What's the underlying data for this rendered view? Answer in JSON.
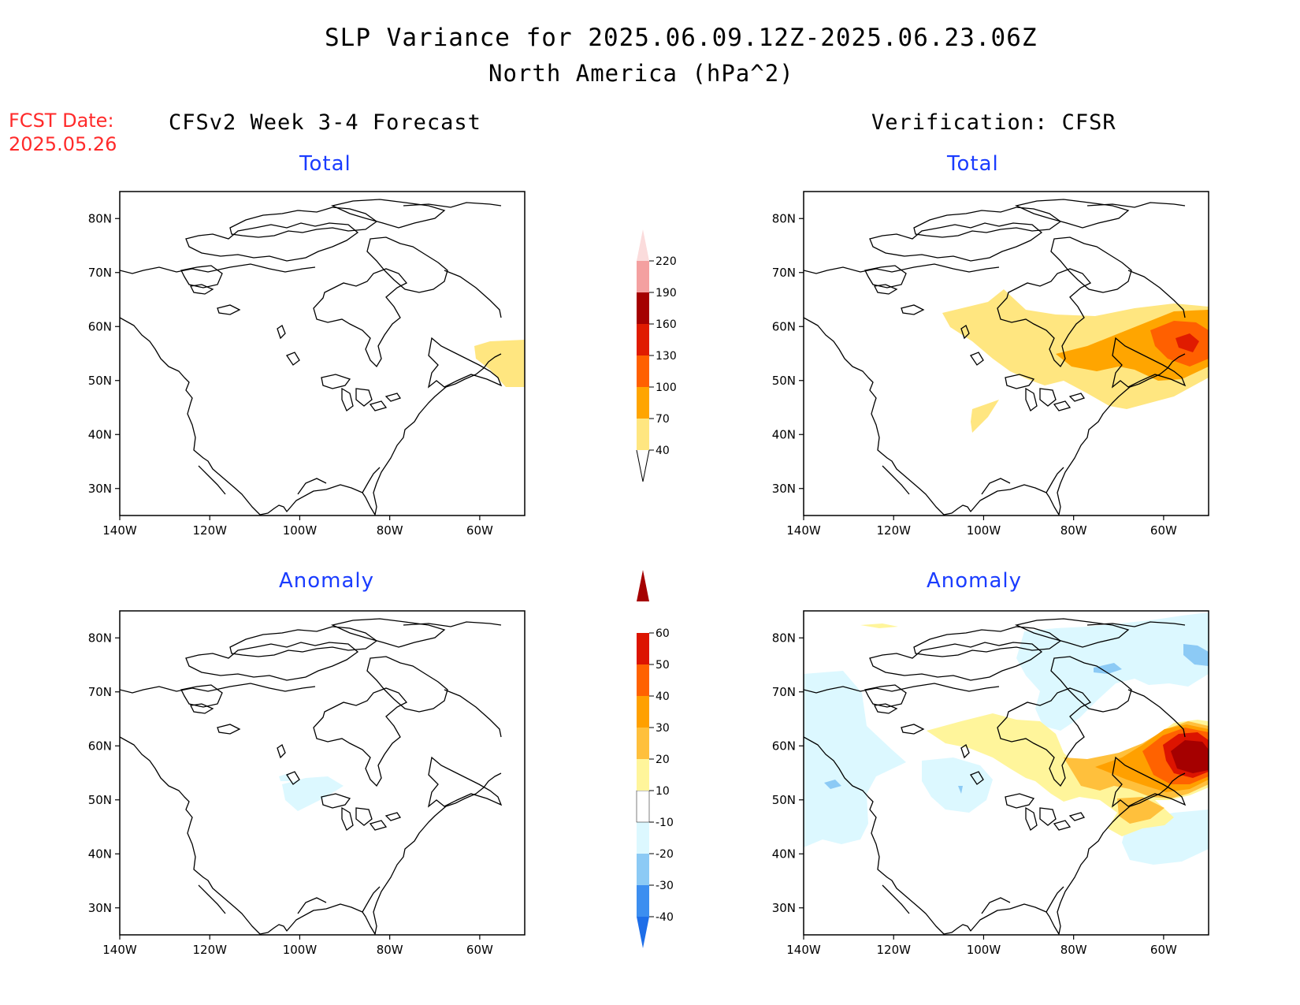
{
  "title": "SLP Variance for 2025.06.09.12Z-2025.06.23.06Z",
  "subtitle": "North America (hPa^2)",
  "fcst_date_label": "FCST Date:",
  "fcst_date_value": "2025.05.26",
  "left_header": "CFSv2 Week 3-4 Forecast",
  "right_header": "Verification: CFSR",
  "panels": {
    "fc_total": {
      "title": "Total"
    },
    "vf_total": {
      "title": "Total"
    },
    "fc_anom": {
      "title": "Anomaly"
    },
    "vf_anom": {
      "title": "Anomaly"
    }
  },
  "chart_data": {
    "type": "map",
    "x_ticks": [
      "140W",
      "120W",
      "100W",
      "80W",
      "60W"
    ],
    "y_ticks": [
      "30N",
      "40N",
      "50N",
      "60N",
      "70N",
      "80N"
    ],
    "lon_range": [
      -140,
      -50
    ],
    "lat_range": [
      25,
      85
    ],
    "total_colorbar": {
      "levels": [
        "40",
        "70",
        "100",
        "130",
        "160",
        "190",
        "220"
      ],
      "colors": [
        "#ffe680",
        "#ffa500",
        "#ff6000",
        "#e01b00",
        "#a50000",
        "#f4a0a0",
        "#fbdcdc"
      ]
    },
    "anomaly_colorbar": {
      "levels": [
        "-40",
        "-30",
        "-20",
        "-10",
        "10",
        "20",
        "30",
        "40",
        "50",
        "60"
      ],
      "colors": [
        "#1e6ee8",
        "#3c8ef0",
        "#8ccaf5",
        "#dcf8ff",
        "#ffffff",
        "#fff59b",
        "#ffc03c",
        "#ffa000",
        "#ff6200",
        "#dc1400",
        "#a50000"
      ]
    }
  }
}
